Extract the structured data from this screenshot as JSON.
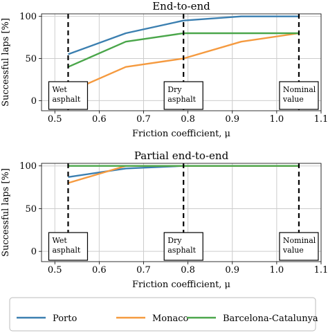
{
  "legend": {
    "entries": [
      {
        "name": "Porto",
        "color": "#3b7fb0"
      },
      {
        "name": "Monaco",
        "color": "#f59a3f"
      },
      {
        "name": "Barcelona-Catalunya",
        "color": "#4aa64a"
      }
    ],
    "placement": "bottom"
  },
  "chart_data": [
    {
      "type": "line",
      "title": "End-to-end",
      "xlabel": "Friction coefficient, μ",
      "ylabel": "Successful laps [%]",
      "xlim": [
        0.47,
        1.1
      ],
      "ylim": [
        -12,
        103
      ],
      "xticks": [
        "0.5",
        "0.6",
        "0.7",
        "0.8",
        "0.9",
        "1.0",
        "1.1"
      ],
      "xtick_values": [
        0.5,
        0.6,
        0.7,
        0.8,
        0.9,
        1.0,
        1.1
      ],
      "yticks": [
        "0",
        "50",
        "100"
      ],
      "ytick_values": [
        0,
        50,
        100
      ],
      "grid": true,
      "series": [
        {
          "name": "Porto",
          "color": "#3b7fb0",
          "x": [
            0.53,
            0.66,
            0.79,
            0.92,
            1.05
          ],
          "y": [
            55,
            80,
            95,
            100,
            100
          ]
        },
        {
          "name": "Monaco",
          "color": "#f59a3f",
          "x": [
            0.53,
            0.66,
            0.79,
            0.92,
            1.05
          ],
          "y": [
            10,
            40,
            50,
            70,
            80
          ]
        },
        {
          "name": "Barcelona-Catalunya",
          "color": "#4aa64a",
          "x": [
            0.53,
            0.66,
            0.79,
            0.92,
            1.05
          ],
          "y": [
            40,
            70,
            80,
            80,
            80
          ]
        }
      ],
      "annotations": [
        {
          "x": 0.53,
          "text_lines": [
            "Wet",
            "asphalt"
          ]
        },
        {
          "x": 0.79,
          "text_lines": [
            "Dry",
            "asphalt"
          ]
        },
        {
          "x": 1.05,
          "text_lines": [
            "Nominal",
            "value"
          ]
        }
      ]
    },
    {
      "type": "line",
      "title": "Partial end-to-end",
      "xlabel": "Friction coefficient, μ",
      "ylabel": "Successful laps [%]",
      "xlim": [
        0.47,
        1.1
      ],
      "ylim": [
        -12,
        103
      ],
      "xticks": [
        "0.5",
        "0.6",
        "0.7",
        "0.8",
        "0.9",
        "1.0",
        "1.1"
      ],
      "xtick_values": [
        0.5,
        0.6,
        0.7,
        0.8,
        0.9,
        1.0,
        1.1
      ],
      "yticks": [
        "0",
        "50",
        "100"
      ],
      "ytick_values": [
        0,
        50,
        100
      ],
      "grid": true,
      "series": [
        {
          "name": "Porto",
          "color": "#3b7fb0",
          "x": [
            0.53,
            0.66,
            0.79,
            0.92,
            1.05
          ],
          "y": [
            87,
            97,
            100,
            100,
            100
          ]
        },
        {
          "name": "Monaco",
          "color": "#f59a3f",
          "x": [
            0.53,
            0.66,
            0.79,
            0.92,
            1.05
          ],
          "y": [
            80,
            100,
            100,
            100,
            100
          ]
        },
        {
          "name": "Barcelona-Catalunya",
          "color": "#4aa64a",
          "x": [
            0.53,
            0.66,
            0.79,
            0.92,
            1.05
          ],
          "y": [
            100,
            100,
            100,
            100,
            100
          ]
        }
      ],
      "annotations": [
        {
          "x": 0.53,
          "text_lines": [
            "Wet",
            "asphalt"
          ]
        },
        {
          "x": 0.79,
          "text_lines": [
            "Dry",
            "asphalt"
          ]
        },
        {
          "x": 1.05,
          "text_lines": [
            "Nominal",
            "value"
          ]
        }
      ]
    }
  ]
}
